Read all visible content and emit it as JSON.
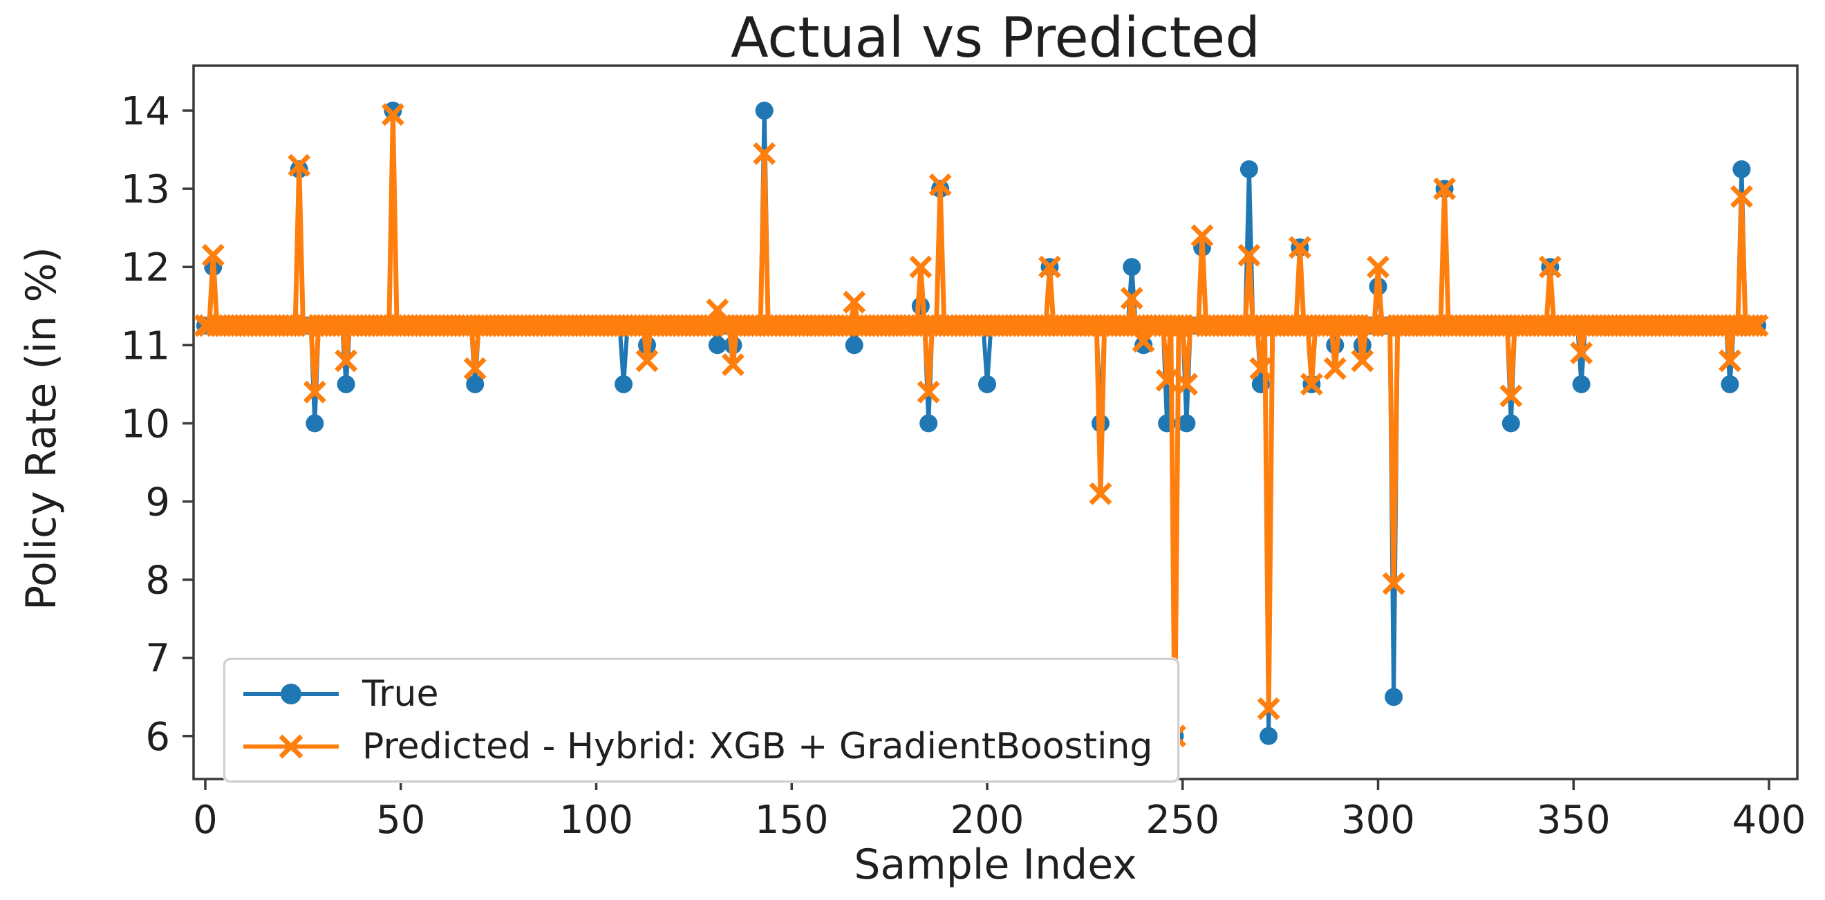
{
  "page": {
    "background": "#ffffff"
  },
  "chart_data": {
    "type": "line",
    "title": "Actual vs Predicted",
    "xlabel": "Sample Index",
    "ylabel": "Policy Rate (in %)",
    "x_ticks": [
      0,
      50,
      100,
      150,
      200,
      250,
      300,
      350,
      400
    ],
    "y_ticks": [
      6,
      7,
      8,
      9,
      10,
      11,
      12,
      13,
      14
    ],
    "n_points": 398,
    "baseline": 11.25,
    "ylim": [
      5.45,
      14.6
    ],
    "grid": false,
    "legend_position": "lower-left",
    "colors": {
      "axis": "#3a3a3a",
      "text": "#1f1f1f",
      "legend_border": "#cfcfcf",
      "true_series": "#1f77b4",
      "predicted_series": "#ff7f0e"
    },
    "series": [
      {
        "name": "True",
        "color": "#1f77b4",
        "marker": "circle",
        "anomalies": {
          "2": 12.0,
          "24": 13.25,
          "28": 10.0,
          "36": 10.5,
          "48": 14.0,
          "69": 10.5,
          "107": 10.5,
          "113": 11.0,
          "131": 11.0,
          "135": 11.0,
          "143": 14.0,
          "166": 11.0,
          "183": 11.5,
          "185": 10.0,
          "188": 13.0,
          "200": 10.5,
          "216": 12.0,
          "229": 10.0,
          "237": 12.0,
          "240": 11.0,
          "246": 10.0,
          "248": 6.0,
          "251": 10.0,
          "255": 12.25,
          "267": 13.25,
          "270": 10.5,
          "272": 6.0,
          "280": 12.25,
          "283": 10.5,
          "289": 11.0,
          "296": 11.0,
          "300": 11.75,
          "304": 6.5,
          "317": 13.0,
          "334": 10.0,
          "344": 12.0,
          "352": 10.5,
          "390": 10.5,
          "393": 13.25
        }
      },
      {
        "name": "Predicted - Hybrid: XGB + GradientBoosting",
        "color": "#ff7f0e",
        "marker": "x",
        "anomalies": {
          "2": 12.15,
          "24": 13.3,
          "28": 10.4,
          "36": 10.8,
          "48": 13.95,
          "69": 10.7,
          "113": 10.8,
          "131": 11.45,
          "135": 10.75,
          "143": 13.45,
          "166": 11.55,
          "183": 12.0,
          "185": 10.4,
          "188": 13.05,
          "216": 12.0,
          "229": 9.1,
          "237": 11.6,
          "240": 11.05,
          "246": 10.55,
          "248": 6.0,
          "251": 10.5,
          "255": 12.4,
          "267": 12.15,
          "270": 10.7,
          "272": 6.35,
          "280": 12.25,
          "283": 10.5,
          "289": 10.7,
          "296": 10.8,
          "300": 12.0,
          "304": 7.95,
          "317": 13.0,
          "334": 10.35,
          "344": 12.0,
          "352": 10.9,
          "390": 10.8,
          "393": 12.9
        }
      }
    ]
  }
}
